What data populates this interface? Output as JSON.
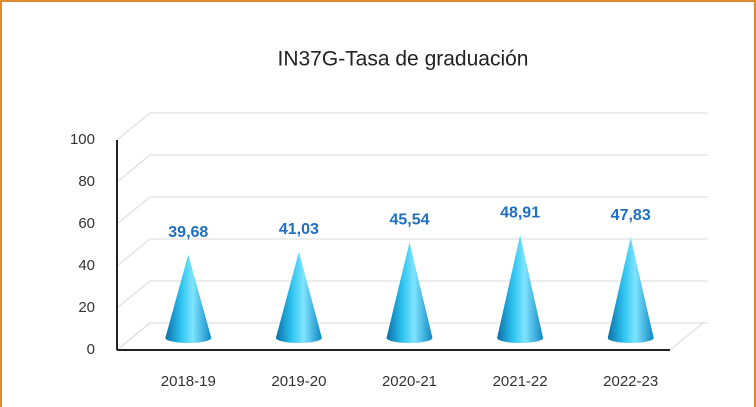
{
  "chart_data": {
    "type": "cone",
    "title": "IN37G-Tasa de graduación",
    "categories": [
      "2018-19",
      "2019-20",
      "2020-21",
      "2021-22",
      "2022-23"
    ],
    "values": [
      39.68,
      41.03,
      45.54,
      48.91,
      47.83
    ],
    "value_labels": [
      "39,68",
      "41,03",
      "45,54",
      "48,91",
      "47,83"
    ],
    "color": "#1aa3e0",
    "ylim": [
      0,
      100
    ],
    "yticks": [
      0,
      20,
      40,
      60,
      80,
      100
    ],
    "grid": true
  }
}
